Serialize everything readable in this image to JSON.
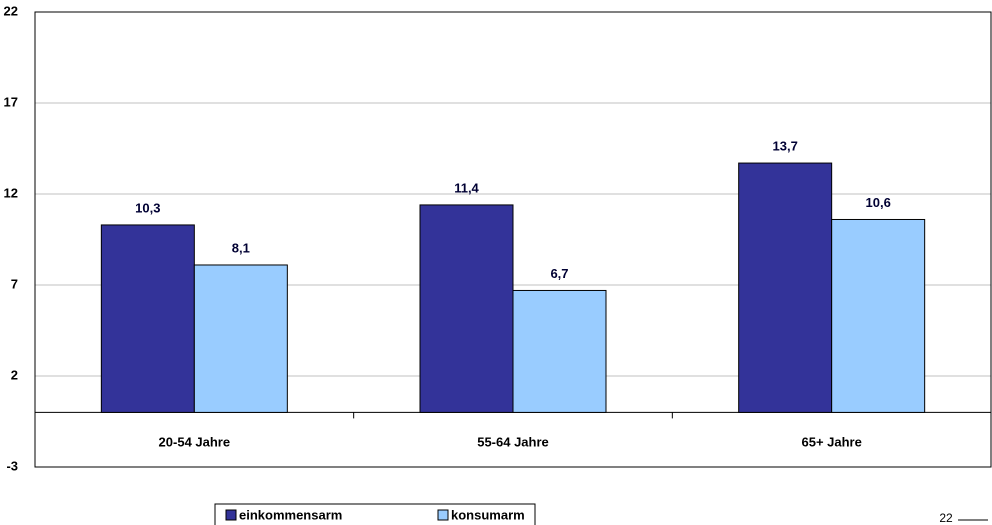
{
  "chart_data": {
    "type": "bar",
    "categories": [
      "20-54 Jahre",
      "55-64 Jahre",
      "65+ Jahre"
    ],
    "series": [
      {
        "name": "einkommensarm",
        "color": "#333399",
        "values": [
          10.3,
          11.4,
          13.7
        ],
        "value_labels": [
          "10,3",
          "11,4",
          "13,7"
        ]
      },
      {
        "name": "konsumarm",
        "color": "#99ccff",
        "values": [
          8.1,
          6.7,
          10.6
        ],
        "value_labels": [
          "8,1",
          "6,7",
          "10,6"
        ]
      }
    ],
    "ylim": [
      -3,
      22
    ],
    "yticks": [
      -3,
      2,
      7,
      12,
      17,
      22
    ],
    "grid": true,
    "legend": "bottom",
    "page_number": "22"
  }
}
